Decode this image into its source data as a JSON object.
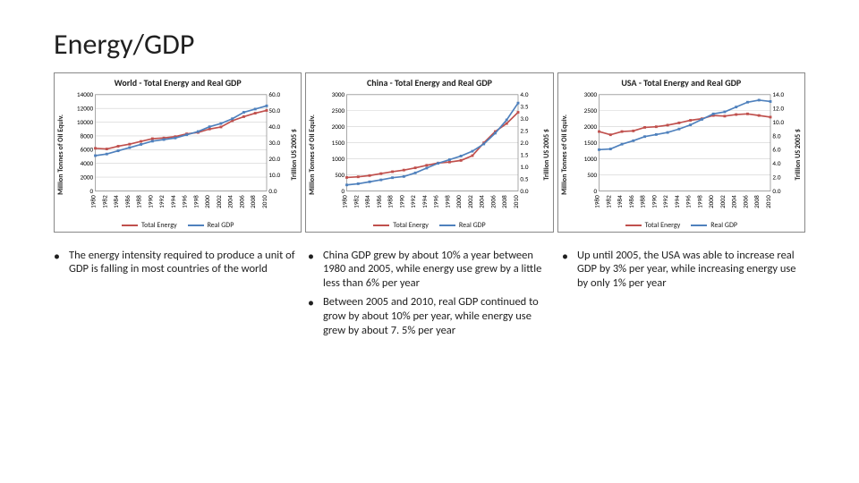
{
  "title": "Energy/GDP",
  "charts": [
    {
      "title": "World - Total Energy and Real GDP",
      "ylabel": "Million Tonnes of Oil Equiv.",
      "y2label": "Trillion US 2005 $",
      "years": [
        1980,
        1982,
        1984,
        1986,
        1988,
        1990,
        1992,
        1994,
        1996,
        1998,
        2000,
        2002,
        2004,
        2006,
        2008,
        2010
      ],
      "y1_max": 14000,
      "y1_step": 2000,
      "y2_max": 60.0,
      "y2_step": 10.0,
      "y2_decimals": 1,
      "energy": [
        6200,
        6100,
        6500,
        6800,
        7200,
        7600,
        7700,
        7900,
        8300,
        8500,
        9000,
        9300,
        10200,
        10800,
        11300,
        11700
      ],
      "real_gdp": [
        22,
        23,
        25,
        27,
        29,
        31,
        32,
        33,
        35,
        37,
        40,
        42,
        45,
        49,
        51,
        53
      ],
      "grid_color": "#d0d0d0",
      "energy_color": "#c0504d",
      "gdp_color": "#4f81bd",
      "bg": "#ffffff"
    },
    {
      "title": "China - Total Energy and Real GDP",
      "ylabel": "Million Tonnes of Oil Equiv.",
      "y2label": "Trillion US 2005 $",
      "years": [
        1980,
        1982,
        1984,
        1986,
        1988,
        1990,
        1992,
        1994,
        1996,
        1998,
        2000,
        2002,
        2004,
        2006,
        2008,
        2010
      ],
      "y1_max": 3000,
      "y1_step": 500,
      "y2_max": 4.0,
      "y2_step": 0.5,
      "y2_decimals": 1,
      "energy": [
        420,
        440,
        480,
        540,
        600,
        650,
        720,
        800,
        870,
        900,
        950,
        1100,
        1500,
        1850,
        2100,
        2450
      ],
      "real_gdp": [
        0.25,
        0.3,
        0.38,
        0.46,
        0.55,
        0.6,
        0.75,
        0.95,
        1.15,
        1.3,
        1.45,
        1.65,
        1.95,
        2.4,
        2.95,
        3.65
      ],
      "grid_color": "#d0d0d0",
      "energy_color": "#c0504d",
      "gdp_color": "#4f81bd",
      "bg": "#ffffff"
    },
    {
      "title": "USA - Total Energy and Real GDP",
      "ylabel": "Million Tonnes of Oil Equiv.",
      "y2label": "Trillion US 2005 $",
      "years": [
        1980,
        1982,
        1984,
        1986,
        1988,
        1990,
        1992,
        1994,
        1996,
        1998,
        2000,
        2002,
        2004,
        2006,
        2008,
        2010
      ],
      "y1_max": 3000,
      "y1_step": 500,
      "y2_max": 14.0,
      "y2_step": 2.0,
      "y2_decimals": 1,
      "energy": [
        1850,
        1750,
        1850,
        1870,
        1980,
        2000,
        2050,
        2120,
        2200,
        2250,
        2350,
        2330,
        2380,
        2400,
        2350,
        2300
      ],
      "real_gdp": [
        6.0,
        6.1,
        6.8,
        7.3,
        7.9,
        8.2,
        8.5,
        9.0,
        9.6,
        10.4,
        11.2,
        11.5,
        12.2,
        12.9,
        13.2,
        13.0
      ],
      "grid_color": "#d0d0d0",
      "energy_color": "#c0504d",
      "gdp_color": "#4f81bd",
      "bg": "#ffffff"
    }
  ],
  "legend": {
    "energy": "Total Energy",
    "gdp": "Real GDP"
  },
  "bullets": {
    "col1": [
      "The energy intensity required to produce a unit of GDP is falling in most countries of the world"
    ],
    "col2": [
      "China GDP grew by about 10% a year between 1980 and 2005, while energy use grew by a little less than 6% per year",
      "Between 2005 and 2010, real GDP continued to grow by about 10% per year, while energy use grew by about 7. 5% per year"
    ],
    "col3": [
      "Up until 2005, the USA was able to increase real GDP by 3% per year, while increasing energy use by only 1% per year"
    ]
  },
  "label_fontsize": 8
}
